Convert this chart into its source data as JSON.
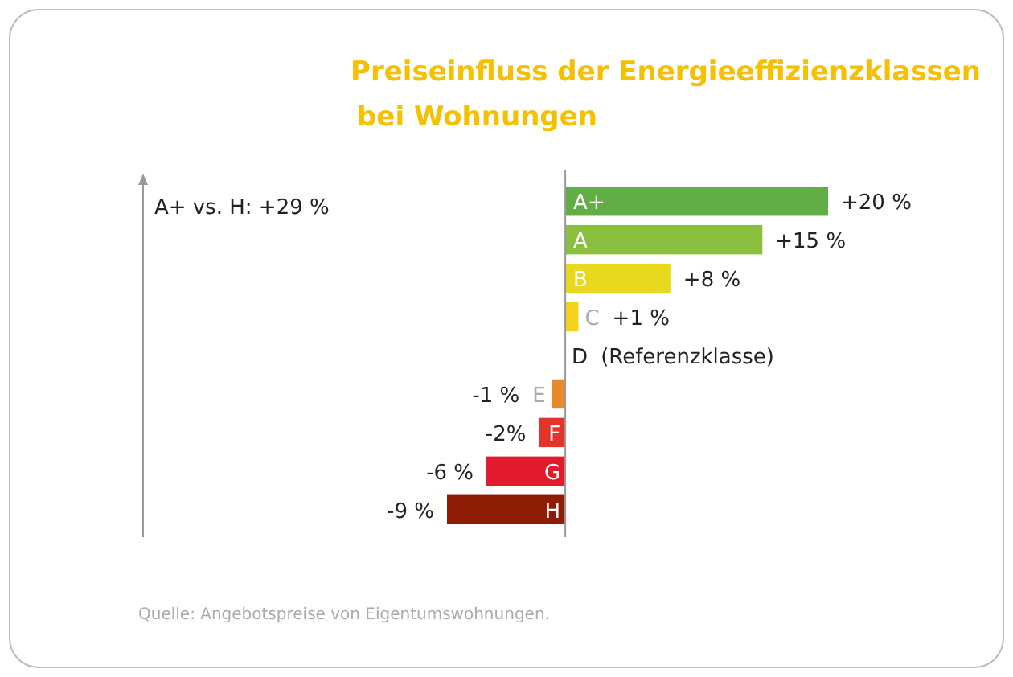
{
  "chart_data": {
    "type": "bar",
    "orientation": "horizontal",
    "title": "Preiseinfluss der Energieeffizienzklassen bei Wohnungen",
    "categories": [
      "A+",
      "A",
      "B",
      "C",
      "D",
      "E",
      "F",
      "G",
      "H"
    ],
    "values": [
      20,
      15,
      8,
      1,
      0,
      -1,
      -2,
      -6,
      -9
    ],
    "colors": [
      "#62ae46",
      "#8bbf3f",
      "#e8d81e",
      "#f2d21a",
      "#ffffff",
      "#e88a2c",
      "#e3342a",
      "#e31a2d",
      "#8f1d05"
    ],
    "value_labels": [
      "+20 %",
      "+15 %",
      "+8 %",
      "+1 %",
      "(Referenzklasse)",
      "-1 %",
      "-2%",
      "-6 %",
      "-9 %"
    ],
    "annotations": [
      "A+ vs. H: +29 %",
      "Quelle: Angebotspreise von Eigentumswohnungen."
    ],
    "data_labels": false
  }
}
